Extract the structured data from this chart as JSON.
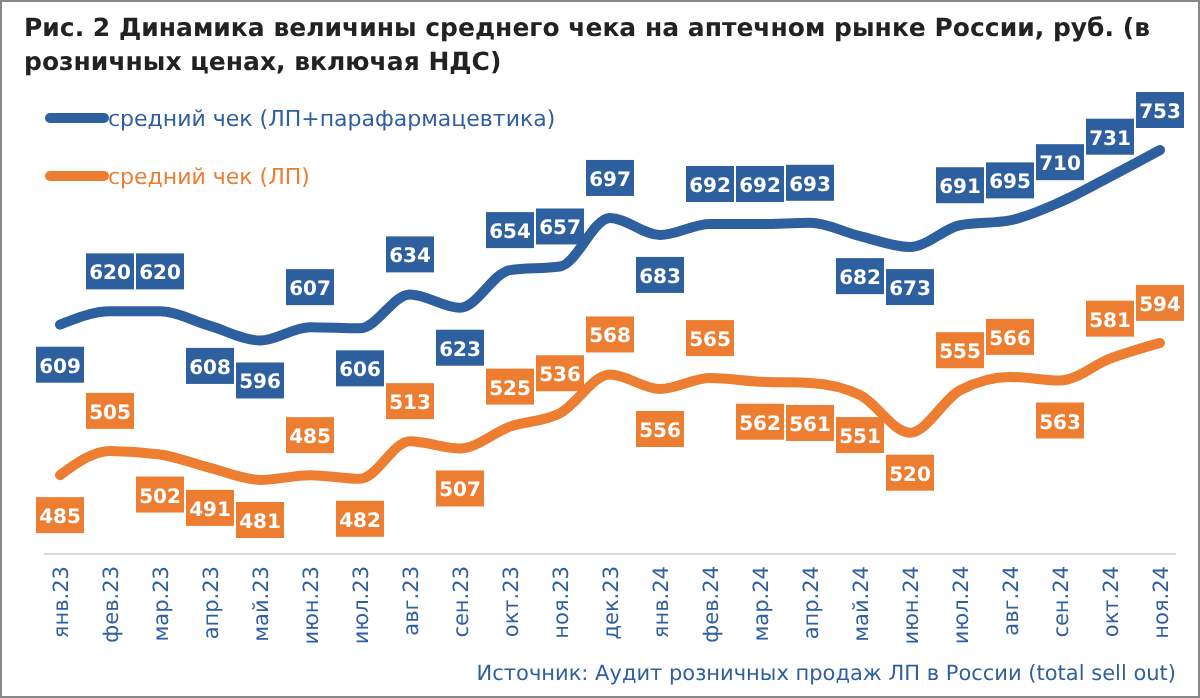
{
  "chart_data": {
    "type": "line",
    "title": "Рис. 2 Динамика величины среднего чека на аптечном рынке России, руб. (в розничных ценах, включая НДС)",
    "categories": [
      "янв.23",
      "фев.23",
      "мар.23",
      "апр.23",
      "май.23",
      "июн.23",
      "июл.23",
      "авг.23",
      "сен.23",
      "окт.23",
      "ноя.23",
      "дек.23",
      "янв.24",
      "фев.24",
      "мар.24",
      "апр.24",
      "май.24",
      "июн.24",
      "июл.24",
      "авг.24",
      "сен.24",
      "окт.24",
      "ноя.24"
    ],
    "series": [
      {
        "name": "средний чек (ЛП+парафармацевтика)",
        "color": "#2e5f9e",
        "values": [
          609,
          620,
          620,
          608,
          596,
          607,
          606,
          634,
          623,
          654,
          657,
          697,
          683,
          692,
          692,
          693,
          682,
          673,
          691,
          695,
          710,
          731,
          753
        ]
      },
      {
        "name": "средний чек (ЛП)",
        "color": "#ed7d31",
        "values": [
          485,
          505,
          502,
          491,
          481,
          485,
          482,
          513,
          507,
          525,
          536,
          568,
          556,
          565,
          562,
          561,
          551,
          520,
          555,
          566,
          563,
          581,
          594
        ]
      }
    ],
    "data_labels": true,
    "legend": "top left",
    "marker": "none",
    "line_style": "solid",
    "grid": false,
    "annotations": [
      "Источник: Аудит розничных продаж ЛП в России (total sell out)"
    ]
  }
}
